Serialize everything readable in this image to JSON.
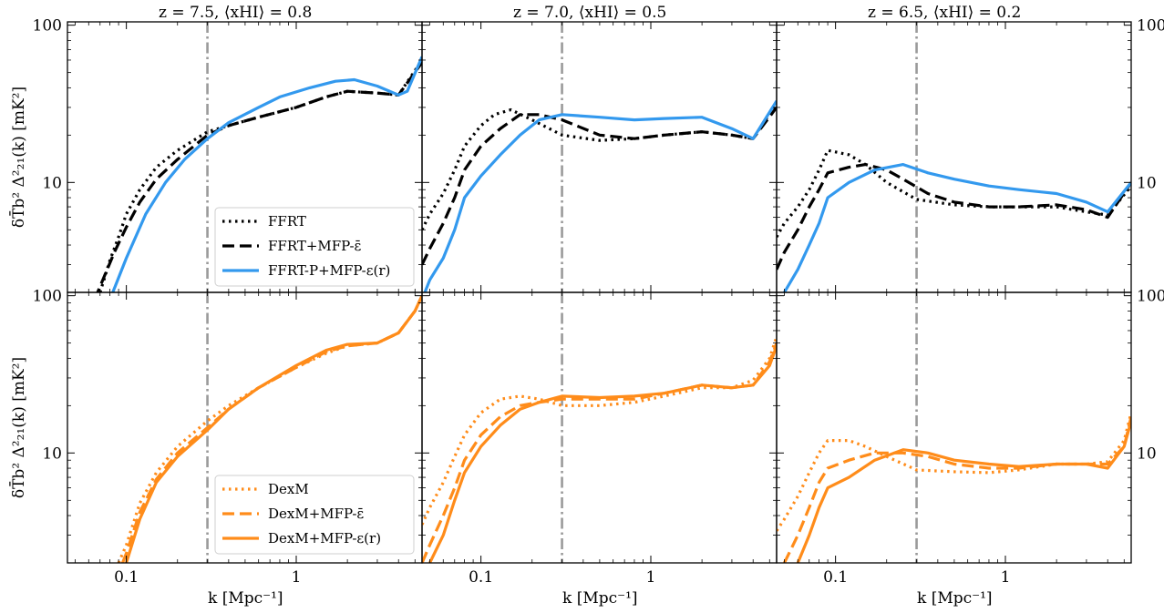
{
  "chart_data": {
    "type": "line",
    "layout": "2x3 grid, shared axes",
    "xscale": "log",
    "yscale": "log",
    "xlim": [
      0.045,
      5.5
    ],
    "ylim": [
      2,
      105
    ],
    "x_ticks": [
      0.1,
      1
    ],
    "x_tick_labels": [
      "0.1",
      "1"
    ],
    "y_ticks": [
      10,
      100
    ],
    "y_tick_labels": [
      "10",
      "100"
    ],
    "xlabel": "k [Mpc⁻¹]",
    "ylabel": "δT̄b² Δ²₂₁(k) [mK²]",
    "vline_x": 0.3,
    "columns": [
      {
        "title": "z = 7.5, ⟨xHI⟩ = 0.8"
      },
      {
        "title": "z = 7.0, ⟨xHI⟩ = 0.5"
      },
      {
        "title": "z = 6.5, ⟨xHI⟩ = 0.2"
      }
    ],
    "rows": [
      {
        "legend": [
          {
            "label": "FFRT",
            "color": "#000000",
            "style": "dotted"
          },
          {
            "label": "FFRT+MFP-ε̄",
            "color": "#000000",
            "style": "dashed"
          },
          {
            "label": "FFRT-P+MFP-ε(r)",
            "color": "#3399ee",
            "style": "solid"
          }
        ],
        "series": [
          [
            {
              "name": "FFRT",
              "x": [
                0.07,
                0.08,
                0.09,
                0.1,
                0.12,
                0.15,
                0.2,
                0.3,
                0.4,
                0.6,
                1.0,
                1.5,
                2.0,
                3.0,
                4.0,
                5.5
              ],
              "y": [
                2,
                3.2,
                4.5,
                6.3,
                9,
                12.5,
                16,
                21,
                23,
                26,
                30,
                35,
                38,
                37,
                36,
                60
              ]
            },
            {
              "name": "FFRT+MFP-ε̄",
              "x": [
                0.065,
                0.075,
                0.085,
                0.1,
                0.12,
                0.15,
                0.2,
                0.3,
                0.4,
                0.6,
                1.0,
                1.5,
                2.0,
                3.0,
                4.0,
                5.5
              ],
              "y": [
                1.8,
                2.6,
                3.6,
                5.2,
                7.5,
                10.5,
                14,
                20,
                23,
                26,
                30,
                35,
                38,
                37,
                36,
                58
              ]
            },
            {
              "name": "FFRT-P+MFP-ε(r)",
              "x": [
                0.08,
                0.1,
                0.13,
                0.17,
                0.22,
                0.3,
                0.4,
                0.6,
                0.8,
                1.2,
                1.7,
                2.2,
                3.0,
                4.0,
                4.5,
                5.5
              ],
              "y": [
                1.8,
                3.3,
                6.3,
                10,
                14,
                19,
                24,
                30,
                35,
                40,
                44,
                45,
                41,
                36,
                38,
                63
              ]
            }
          ],
          [
            {
              "name": "FFRT",
              "x": [
                0.045,
                0.05,
                0.06,
                0.07,
                0.08,
                0.1,
                0.12,
                0.15,
                0.2,
                0.3,
                0.5,
                0.8,
                1.2,
                2.0,
                3.0,
                4.0,
                5.5
              ],
              "y": [
                5,
                6.3,
                8.5,
                12,
                17,
                23,
                27,
                29,
                25,
                20,
                18.5,
                19,
                20,
                21,
                20,
                19,
                32
              ]
            },
            {
              "name": "FFRT+MFP-ε̄",
              "x": [
                0.045,
                0.05,
                0.06,
                0.07,
                0.08,
                0.1,
                0.13,
                0.17,
                0.22,
                0.3,
                0.5,
                0.8,
                1.2,
                2.0,
                3.0,
                4.0,
                5.5
              ],
              "y": [
                3,
                3.8,
                5.5,
                8,
                12,
                17,
                22,
                27,
                27,
                25,
                20,
                19,
                20,
                21,
                20,
                19,
                30
              ]
            },
            {
              "name": "FFRT-P+MFP-ε(r)",
              "x": [
                0.045,
                0.05,
                0.06,
                0.07,
                0.08,
                0.1,
                0.13,
                0.17,
                0.22,
                0.3,
                0.5,
                0.8,
                1.2,
                2.0,
                3.0,
                4.0,
                5.5
              ],
              "y": [
                1.8,
                2.4,
                3.3,
                5,
                8,
                11,
                15,
                20,
                25,
                27,
                26,
                25,
                25.5,
                26,
                22,
                19,
                33
              ]
            }
          ],
          [
            {
              "name": "FFRT",
              "x": [
                0.045,
                0.05,
                0.06,
                0.07,
                0.08,
                0.09,
                0.12,
                0.15,
                0.2,
                0.3,
                0.5,
                0.8,
                1.2,
                2.0,
                3.0,
                4.0,
                5.5
              ],
              "y": [
                4.5,
                5.5,
                7,
                9,
                12,
                16,
                15,
                13,
                10,
                7.8,
                7.2,
                7,
                7,
                7,
                6.5,
                6.2,
                9.5
              ]
            },
            {
              "name": "FFRT+MFP-ε̄",
              "x": [
                0.045,
                0.05,
                0.06,
                0.07,
                0.08,
                0.09,
                0.12,
                0.15,
                0.2,
                0.25,
                0.35,
                0.5,
                0.8,
                1.2,
                2.0,
                3.0,
                4.0,
                5.5
              ],
              "y": [
                2.8,
                3.6,
                5,
                7,
                9,
                11.5,
                12.5,
                13,
                12,
                10.5,
                8.5,
                7.5,
                7,
                7,
                7.2,
                6.7,
                6,
                10
              ]
            },
            {
              "name": "FFRT-P+MFP-ε(r)",
              "x": [
                0.05,
                0.06,
                0.07,
                0.08,
                0.09,
                0.12,
                0.17,
                0.25,
                0.35,
                0.5,
                0.8,
                1.2,
                2.0,
                3.0,
                4.0,
                5.5
              ],
              "y": [
                2,
                2.8,
                4,
                5.5,
                8,
                10,
                12,
                13,
                11.5,
                10.5,
                9.5,
                9,
                8.5,
                7.5,
                6.5,
                10
              ]
            }
          ]
        ]
      },
      {
        "legend": [
          {
            "label": "DexM",
            "color": "#ff8c1a",
            "style": "dotted"
          },
          {
            "label": "DexM+MFP-ε̄",
            "color": "#ff8c1a",
            "style": "dashed"
          },
          {
            "label": "DexM+MFP-ε(r)",
            "color": "#ff8c1a",
            "style": "solid"
          }
        ],
        "series": [
          [
            {
              "name": "DexM",
              "x": [
                0.09,
                0.1,
                0.12,
                0.15,
                0.2,
                0.3,
                0.4,
                0.6,
                1.0,
                1.5,
                2.0,
                3.0,
                4.0,
                5.0,
                5.5
              ],
              "y": [
                2,
                2.6,
                4.8,
                7.5,
                11,
                16,
                20,
                26,
                35,
                43,
                48,
                50,
                58,
                80,
                100
              ]
            },
            {
              "name": "DexM+MFP-ε̄",
              "x": [
                0.095,
                0.1,
                0.12,
                0.15,
                0.2,
                0.3,
                0.4,
                0.6,
                1.0,
                1.5,
                2.0,
                3.0,
                4.0,
                5.0,
                5.5
              ],
              "y": [
                2,
                2.3,
                4.2,
                6.8,
                10,
                14.5,
                19,
                26,
                35,
                44,
                48,
                50,
                58,
                80,
                100
              ]
            },
            {
              "name": "DexM+MFP-ε(r)",
              "x": [
                0.1,
                0.12,
                0.15,
                0.2,
                0.3,
                0.4,
                0.6,
                1.0,
                1.5,
                2.0,
                3.0,
                4.0,
                5.0,
                5.5
              ],
              "y": [
                2,
                3.8,
                6.5,
                9.5,
                14,
                19,
                26,
                36,
                45,
                49,
                50,
                58,
                80,
                100
              ]
            }
          ],
          [
            {
              "name": "DexM",
              "x": [
                0.045,
                0.05,
                0.06,
                0.07,
                0.08,
                0.1,
                0.13,
                0.17,
                0.22,
                0.3,
                0.5,
                0.8,
                1.2,
                2.0,
                3.0,
                4.0,
                5.0,
                5.5
              ],
              "y": [
                3.5,
                4.5,
                6.5,
                9.5,
                13,
                18,
                22,
                23,
                22,
                20,
                20,
                21,
                23,
                26,
                26,
                29,
                40,
                55
              ]
            },
            {
              "name": "DexM+MFP-ε̄",
              "x": [
                0.045,
                0.05,
                0.06,
                0.07,
                0.08,
                0.1,
                0.13,
                0.17,
                0.22,
                0.3,
                0.5,
                0.8,
                1.2,
                2.0,
                3.0,
                4.0,
                5.0,
                5.5
              ],
              "y": [
                2,
                2.6,
                4,
                6,
                9,
                13,
                17,
                20,
                21,
                22,
                22,
                22,
                24,
                27,
                26,
                27,
                38,
                50
              ]
            },
            {
              "name": "DexM+MFP-ε(r)",
              "x": [
                0.05,
                0.06,
                0.07,
                0.08,
                0.1,
                0.13,
                0.17,
                0.22,
                0.3,
                0.5,
                0.8,
                1.2,
                2.0,
                3.0,
                4.0,
                5.0,
                5.5
              ],
              "y": [
                2,
                3,
                5,
                7.5,
                11,
                15,
                19,
                21,
                23,
                22.5,
                23,
                24,
                27,
                26,
                27,
                36,
                48
              ]
            }
          ],
          [
            {
              "name": "DexM",
              "x": [
                0.045,
                0.05,
                0.06,
                0.07,
                0.08,
                0.09,
                0.12,
                0.15,
                0.2,
                0.3,
                0.5,
                0.8,
                1.2,
                2.0,
                3.0,
                4.0,
                5.0,
                5.5
              ],
              "y": [
                3.2,
                3.8,
                5.3,
                7.5,
                10,
                12,
                12,
                11,
                9.5,
                7.8,
                7.6,
                7.5,
                7.8,
                8.5,
                8.5,
                8.8,
                12,
                18
              ]
            },
            {
              "name": "DexM+MFP-ε̄",
              "x": [
                0.05,
                0.06,
                0.07,
                0.08,
                0.09,
                0.12,
                0.17,
                0.25,
                0.35,
                0.5,
                0.8,
                1.2,
                2.0,
                3.0,
                4.0,
                5.0,
                5.5
              ],
              "y": [
                2,
                3,
                4.5,
                6.5,
                8,
                9,
                10,
                10,
                9.5,
                8.5,
                8,
                8,
                8.5,
                8.5,
                8.5,
                11,
                17
              ]
            },
            {
              "name": "DexM+MFP-ε(r)",
              "x": [
                0.06,
                0.07,
                0.08,
                0.09,
                0.12,
                0.17,
                0.25,
                0.35,
                0.5,
                0.8,
                1.2,
                2.0,
                3.0,
                4.0,
                5.0,
                5.5
              ],
              "y": [
                2,
                3,
                4.5,
                6,
                7,
                9,
                10.5,
                10,
                9,
                8.5,
                8.2,
                8.5,
                8.5,
                8,
                11,
                16
              ]
            }
          ]
        ]
      }
    ]
  }
}
